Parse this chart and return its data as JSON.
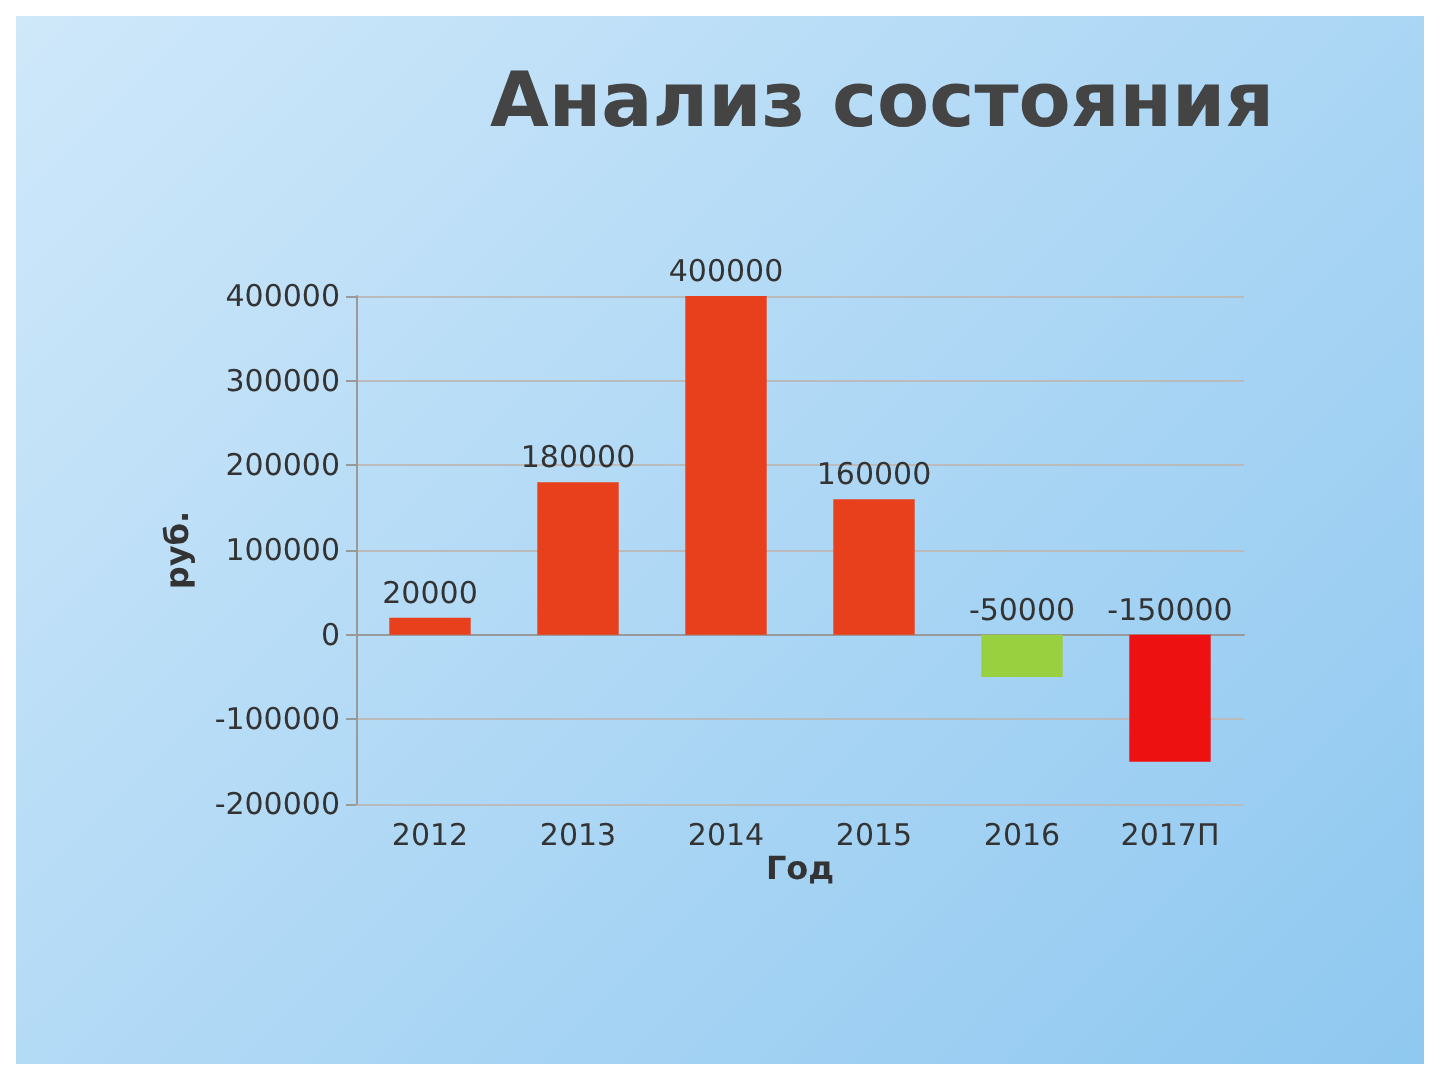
{
  "chart_data": {
    "type": "bar",
    "title": "Анализ состояния",
    "xlabel": "Год",
    "ylabel": "руб.",
    "categories": [
      "2012",
      "2013",
      "2014",
      "2015",
      "2016",
      "2017П"
    ],
    "values": [
      20000,
      180000,
      400000,
      160000,
      -50000,
      -150000
    ],
    "colors": [
      "#e8401c",
      "#e8401c",
      "#e8401c",
      "#e8401c",
      "#99d040",
      "#ee1111"
    ],
    "ylim": [
      -200000,
      400000
    ],
    "yticks": [
      -200000,
      -100000,
      0,
      100000,
      200000,
      300000,
      400000
    ],
    "grid": "y",
    "data_labels": true
  }
}
